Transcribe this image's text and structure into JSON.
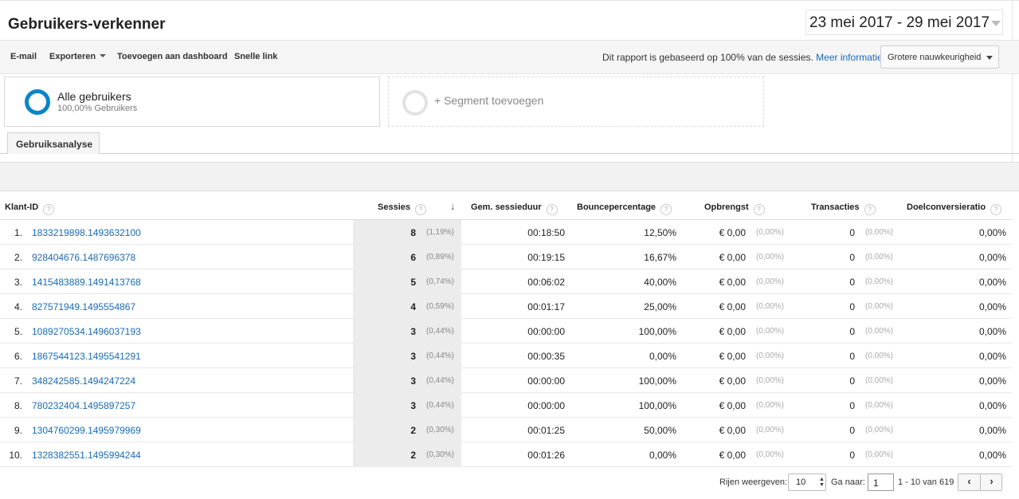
{
  "header": {
    "title": "Gebruikers-verkenner",
    "date_range": "23 mei 2017 - 29 mei 2017"
  },
  "toolbar": {
    "email": "E-mail",
    "export": "Exporteren",
    "add_to_dashboard": "Toevoegen aan dashboard",
    "shortcut": "Snelle link",
    "info_text": "Dit rapport is gebaseerd op 100% van de sessies.",
    "info_link": "Meer informatie",
    "accuracy": "Grotere nauwkeurigheid"
  },
  "segments": {
    "active_name": "Alle gebruikers",
    "active_sub": "100,00% Gebruikers",
    "add_label": "+ Segment toevoegen"
  },
  "tabs": {
    "active": "Gebruiksanalyse"
  },
  "table": {
    "headers": {
      "client_id": "Klant-ID",
      "sessions": "Sessies",
      "avg_duration": "Gem. sessieduur",
      "bounce": "Bouncepercentage",
      "revenue": "Opbrengst",
      "transactions": "Transacties",
      "goal_conversion": "Doelconversieratio"
    },
    "rows": [
      {
        "n": "1.",
        "id": "1833219898.1493632100",
        "s": "8",
        "sp": "(1,19%)",
        "dur": "00:18:50",
        "bounce": "12,50%",
        "rev": "€ 0,00",
        "revp": "(0,00%)",
        "tr": "0",
        "trp": "(0,00%)",
        "conv": "0,00%"
      },
      {
        "n": "2.",
        "id": "928404676.1487696378",
        "s": "6",
        "sp": "(0,89%)",
        "dur": "00:19:15",
        "bounce": "16,67%",
        "rev": "€ 0,00",
        "revp": "(0,00%)",
        "tr": "0",
        "trp": "(0,00%)",
        "conv": "0,00%"
      },
      {
        "n": "3.",
        "id": "1415483889.1491413768",
        "s": "5",
        "sp": "(0,74%)",
        "dur": "00:06:02",
        "bounce": "40,00%",
        "rev": "€ 0,00",
        "revp": "(0,00%)",
        "tr": "0",
        "trp": "(0,00%)",
        "conv": "0,00%"
      },
      {
        "n": "4.",
        "id": "827571949.1495554867",
        "s": "4",
        "sp": "(0,59%)",
        "dur": "00:01:17",
        "bounce": "25,00%",
        "rev": "€ 0,00",
        "revp": "(0,00%)",
        "tr": "0",
        "trp": "(0,00%)",
        "conv": "0,00%"
      },
      {
        "n": "5.",
        "id": "1089270534.1496037193",
        "s": "3",
        "sp": "(0,44%)",
        "dur": "00:00:00",
        "bounce": "100,00%",
        "rev": "€ 0,00",
        "revp": "(0,00%)",
        "tr": "0",
        "trp": "(0,00%)",
        "conv": "0,00%"
      },
      {
        "n": "6.",
        "id": "1867544123.1495541291",
        "s": "3",
        "sp": "(0,44%)",
        "dur": "00:00:35",
        "bounce": "0,00%",
        "rev": "€ 0,00",
        "revp": "(0,00%)",
        "tr": "0",
        "trp": "(0,00%)",
        "conv": "0,00%"
      },
      {
        "n": "7.",
        "id": "348242585.1494247224",
        "s": "3",
        "sp": "(0,44%)",
        "dur": "00:00:00",
        "bounce": "100,00%",
        "rev": "€ 0,00",
        "revp": "(0,00%)",
        "tr": "0",
        "trp": "(0,00%)",
        "conv": "0,00%"
      },
      {
        "n": "8.",
        "id": "780232404.1495897257",
        "s": "3",
        "sp": "(0,44%)",
        "dur": "00:00:00",
        "bounce": "100,00%",
        "rev": "€ 0,00",
        "revp": "(0,00%)",
        "tr": "0",
        "trp": "(0,00%)",
        "conv": "0,00%"
      },
      {
        "n": "9.",
        "id": "1304760299.1495979969",
        "s": "2",
        "sp": "(0,30%)",
        "dur": "00:01:25",
        "bounce": "50,00%",
        "rev": "€ 0,00",
        "revp": "(0,00%)",
        "tr": "0",
        "trp": "(0,00%)",
        "conv": "0,00%"
      },
      {
        "n": "10.",
        "id": "1328382551.1495994244",
        "s": "2",
        "sp": "(0,30%)",
        "dur": "00:01:26",
        "bounce": "0,00%",
        "rev": "€ 0,00",
        "revp": "(0,00%)",
        "tr": "0",
        "trp": "(0,00%)",
        "conv": "0,00%"
      }
    ]
  },
  "pagination": {
    "rows_label": "Rijen weergeven:",
    "rows_value": "10",
    "goto_label": "Ga naar:",
    "goto_value": "1",
    "range": "1 - 10 van 619",
    "prev": "‹",
    "next": "›"
  },
  "colors": {
    "link": "#1a6bb3",
    "donut": "#0a85c8",
    "sorted_column": "#ececec"
  }
}
